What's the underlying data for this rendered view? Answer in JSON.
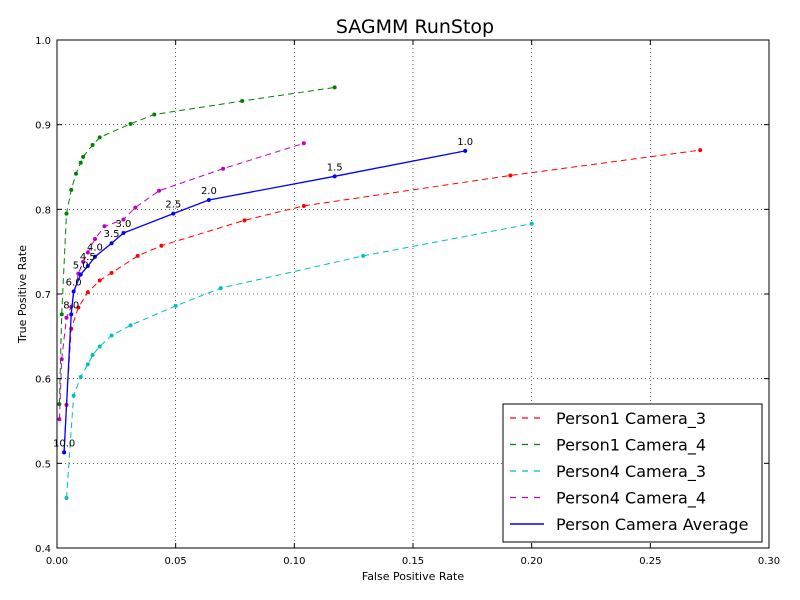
{
  "chart_data": {
    "type": "line",
    "title": "SAGMM RunStop",
    "xlabel": "False Positive Rate",
    "ylabel": "True Positive Rate",
    "xlim": [
      0.0,
      0.3
    ],
    "ylim": [
      0.4,
      1.0
    ],
    "xticks": [
      "0.00",
      "0.05",
      "0.10",
      "0.15",
      "0.20",
      "0.25",
      "0.30"
    ],
    "yticks": [
      "0.4",
      "0.5",
      "0.6",
      "0.7",
      "0.8",
      "0.9",
      "1.0"
    ],
    "grid": true,
    "legend_position": "bottom-right",
    "series": [
      {
        "name": "Person1 Camera_3",
        "color": "#ff0000",
        "style": "dashed",
        "x": [
          0.003,
          0.004,
          0.006,
          0.009,
          0.013,
          0.018,
          0.023,
          0.034,
          0.044,
          0.079,
          0.104,
          0.191,
          0.271
        ],
        "y": [
          0.513,
          0.569,
          0.659,
          0.684,
          0.702,
          0.716,
          0.725,
          0.745,
          0.757,
          0.787,
          0.804,
          0.84,
          0.87
        ]
      },
      {
        "name": "Person1 Camera_4",
        "color": "#008000",
        "style": "dashed",
        "x": [
          0.001,
          0.002,
          0.004,
          0.006,
          0.008,
          0.01,
          0.011,
          0.015,
          0.018,
          0.031,
          0.041,
          0.078,
          0.117
        ],
        "y": [
          0.57,
          0.676,
          0.795,
          0.823,
          0.842,
          0.855,
          0.862,
          0.876,
          0.885,
          0.901,
          0.912,
          0.928,
          0.944
        ]
      },
      {
        "name": "Person4 Camera_3",
        "color": "#00bfbf",
        "style": "dashed",
        "x": [
          0.004,
          0.007,
          0.01,
          0.013,
          0.015,
          0.018,
          0.023,
          0.031,
          0.05,
          0.069,
          0.129,
          0.2
        ],
        "y": [
          0.459,
          0.58,
          0.602,
          0.617,
          0.628,
          0.638,
          0.651,
          0.663,
          0.686,
          0.707,
          0.745,
          0.783
        ]
      },
      {
        "name": "Person4 Camera_4",
        "color": "#bf00bf",
        "style": "dashed",
        "x": [
          0.001,
          0.002,
          0.004,
          0.006,
          0.009,
          0.011,
          0.013,
          0.016,
          0.02,
          0.028,
          0.033,
          0.043,
          0.07,
          0.104
        ],
        "y": [
          0.552,
          0.623,
          0.672,
          0.685,
          0.724,
          0.738,
          0.749,
          0.765,
          0.78,
          0.788,
          0.802,
          0.822,
          0.848,
          0.878
        ]
      },
      {
        "name": "Person Camera Average",
        "color": "#0000ff",
        "style": "solid",
        "x": [
          0.003,
          0.006,
          0.007,
          0.01,
          0.013,
          0.016,
          0.023,
          0.028,
          0.049,
          0.064,
          0.117,
          0.172
        ],
        "y": [
          0.513,
          0.676,
          0.703,
          0.723,
          0.733,
          0.744,
          0.76,
          0.772,
          0.795,
          0.811,
          0.839,
          0.869
        ]
      }
    ],
    "annotations": [
      {
        "text": "10.0",
        "series": 4,
        "point": 0
      },
      {
        "text": "8.0",
        "series": 4,
        "point": 1
      },
      {
        "text": "6.0",
        "series": 4,
        "point": 2
      },
      {
        "text": "5.0",
        "series": 4,
        "point": 3
      },
      {
        "text": "4.5",
        "series": 4,
        "point": 4
      },
      {
        "text": "4.0",
        "series": 4,
        "point": 5
      },
      {
        "text": "3.5",
        "series": 4,
        "point": 6
      },
      {
        "text": "3.0",
        "series": 4,
        "point": 7
      },
      {
        "text": "2.5",
        "series": 4,
        "point": 8
      },
      {
        "text": "2.0",
        "series": 4,
        "point": 9
      },
      {
        "text": "1.5",
        "series": 4,
        "point": 10
      },
      {
        "text": "1.0",
        "series": 4,
        "point": 11
      }
    ]
  }
}
